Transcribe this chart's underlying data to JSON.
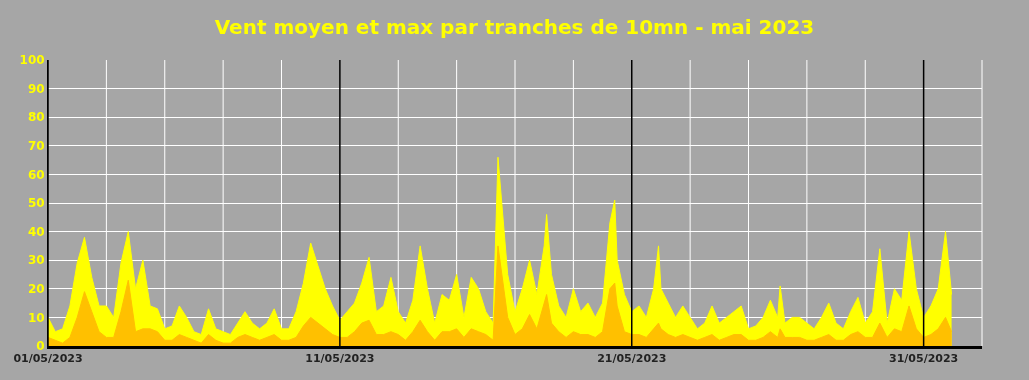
{
  "chart_data": {
    "type": "area",
    "title": "Vent moyen et max par tranches de 10mn - mai 2023",
    "x": [
      "2023-05-01T00:00",
      "2023-05-01T06:00",
      "2023-05-01T12:00",
      "2023-05-01T18:00",
      "2023-05-02T00:00",
      "2023-05-02T06:00",
      "2023-05-02T12:00",
      "2023-05-02T18:00",
      "2023-05-03T00:00",
      "2023-05-03T06:00",
      "2023-05-03T12:00",
      "2023-05-03T18:00",
      "2023-05-04T00:00",
      "2023-05-04T06:00",
      "2023-05-04T12:00",
      "2023-05-04T18:00",
      "2023-05-05T00:00",
      "2023-05-05T06:00",
      "2023-05-05T12:00",
      "2023-05-05T18:00",
      "2023-05-06T00:00",
      "2023-05-06T06:00",
      "2023-05-06T12:00",
      "2023-05-06T18:00",
      "2023-05-07T00:00",
      "2023-05-07T06:00",
      "2023-05-07T12:00",
      "2023-05-07T18:00",
      "2023-05-08T00:00",
      "2023-05-08T06:00",
      "2023-05-08T12:00",
      "2023-05-08T18:00",
      "2023-05-09T00:00",
      "2023-05-09T06:00",
      "2023-05-09T12:00",
      "2023-05-09T18:00",
      "2023-05-10T00:00",
      "2023-05-10T06:00",
      "2023-05-10T12:00",
      "2023-05-10T18:00",
      "2023-05-11T00:00",
      "2023-05-11T06:00",
      "2023-05-11T12:00",
      "2023-05-11T18:00",
      "2023-05-12T00:00",
      "2023-05-12T06:00",
      "2023-05-12T12:00",
      "2023-05-12T18:00",
      "2023-05-13T00:00",
      "2023-05-13T06:00",
      "2023-05-13T12:00",
      "2023-05-13T18:00",
      "2023-05-14T00:00",
      "2023-05-14T06:00",
      "2023-05-14T12:00",
      "2023-05-14T18:00",
      "2023-05-15T00:00",
      "2023-05-15T06:00",
      "2023-05-15T12:00",
      "2023-05-15T18:00",
      "2023-05-16T00:00",
      "2023-05-16T06:00",
      "2023-05-16T10:00",
      "2023-05-16T18:00",
      "2023-05-17T00:00",
      "2023-05-17T06:00",
      "2023-05-17T12:00",
      "2023-05-17T18:00",
      "2023-05-18T00:00",
      "2023-05-18T02:00",
      "2023-05-18T06:00",
      "2023-05-18T12:00",
      "2023-05-18T18:00",
      "2023-05-19T00:00",
      "2023-05-19T06:00",
      "2023-05-19T12:00",
      "2023-05-19T18:00",
      "2023-05-20T00:00",
      "2023-05-20T06:00",
      "2023-05-20T10:00",
      "2023-05-20T12:00",
      "2023-05-20T18:00",
      "2023-05-21T00:00",
      "2023-05-21T06:00",
      "2023-05-21T12:00",
      "2023-05-21T18:00",
      "2023-05-21T22:00",
      "2023-05-22T00:00",
      "2023-05-22T06:00",
      "2023-05-22T12:00",
      "2023-05-22T18:00",
      "2023-05-23T00:00",
      "2023-05-23T06:00",
      "2023-05-23T12:00",
      "2023-05-23T18:00",
      "2023-05-24T00:00",
      "2023-05-24T06:00",
      "2023-05-24T12:00",
      "2023-05-24T18:00",
      "2023-05-25T00:00",
      "2023-05-25T06:00",
      "2023-05-25T12:00",
      "2023-05-25T18:00",
      "2023-05-26T00:00",
      "2023-05-26T02:00",
      "2023-05-26T06:00",
      "2023-05-26T12:00",
      "2023-05-26T18:00",
      "2023-05-27T00:00",
      "2023-05-27T06:00",
      "2023-05-27T12:00",
      "2023-05-27T18:00",
      "2023-05-28T00:00",
      "2023-05-28T06:00",
      "2023-05-28T12:00",
      "2023-05-28T18:00",
      "2023-05-29T00:00",
      "2023-05-29T06:00",
      "2023-05-29T12:00",
      "2023-05-29T18:00",
      "2023-05-30T00:00",
      "2023-05-30T06:00",
      "2023-05-30T12:00",
      "2023-05-30T18:00",
      "2023-05-31T00:00",
      "2023-05-31T06:00",
      "2023-05-31T12:00",
      "2023-05-31T18:00",
      "2023-05-31T23:00"
    ],
    "series": [
      {
        "color": "#ffff00",
        "values": [
          10,
          5,
          6,
          14,
          29,
          38,
          24,
          14,
          14,
          10,
          29,
          40,
          20,
          30,
          14,
          13,
          6,
          7,
          14,
          10,
          5,
          4,
          13,
          6,
          5,
          4,
          8,
          12,
          8,
          6,
          8,
          13,
          6,
          6,
          12,
          22,
          36,
          28,
          20,
          14,
          9,
          12,
          15,
          22,
          31,
          12,
          14,
          24,
          12,
          8,
          16,
          35,
          20,
          8,
          18,
          16,
          25,
          10,
          24,
          20,
          12,
          8,
          66,
          25,
          12,
          20,
          30,
          18,
          35,
          46,
          25,
          14,
          10,
          20,
          12,
          15,
          10,
          15,
          43,
          51,
          30,
          18,
          12,
          14,
          10,
          20,
          35,
          20,
          15,
          10,
          14,
          10,
          6,
          8,
          14,
          8,
          10,
          12,
          14,
          6,
          7,
          10,
          16,
          10,
          21,
          8,
          10,
          10,
          8,
          6,
          10,
          15,
          8,
          6,
          12,
          17,
          8,
          12,
          34,
          8,
          20,
          16,
          40,
          20,
          10,
          14,
          20,
          40,
          18
        ]
      },
      {
        "color": "#ffc000",
        "values": [
          3,
          2,
          1,
          3,
          10,
          19,
          12,
          5,
          3,
          3,
          12,
          23,
          5,
          6,
          6,
          5,
          2,
          2,
          4,
          3,
          2,
          1,
          4,
          2,
          1,
          1,
          3,
          4,
          3,
          2,
          3,
          4,
          2,
          2,
          3,
          7,
          10,
          8,
          6,
          4,
          3,
          3,
          5,
          8,
          9,
          4,
          4,
          5,
          4,
          2,
          5,
          9,
          5,
          2,
          5,
          5,
          6,
          3,
          6,
          5,
          4,
          2,
          35,
          10,
          4,
          6,
          11,
          6,
          15,
          18,
          8,
          5,
          3,
          5,
          4,
          4,
          3,
          5,
          20,
          22,
          14,
          5,
          4,
          4,
          3,
          6,
          8,
          6,
          4,
          3,
          4,
          3,
          2,
          3,
          4,
          2,
          3,
          4,
          4,
          2,
          2,
          3,
          5,
          3,
          6,
          3,
          3,
          3,
          2,
          2,
          3,
          4,
          2,
          2,
          4,
          5,
          3,
          3,
          8,
          3,
          6,
          5,
          14,
          6,
          3,
          4,
          6,
          10,
          5
        ]
      }
    ],
    "xlim": [
      "2023-05-01",
      "2023-06-02"
    ],
    "xticks": [
      {
        "value": "2023-05-01",
        "label": "01/05/2023"
      },
      {
        "value": "2023-05-03",
        "label": null
      },
      {
        "value": "2023-05-05",
        "label": null
      },
      {
        "value": "2023-05-07",
        "label": null
      },
      {
        "value": "2023-05-09",
        "label": null
      },
      {
        "value": "2023-05-11",
        "label": "11/05/2023"
      },
      {
        "value": "2023-05-13",
        "label": null
      },
      {
        "value": "2023-05-15",
        "label": null
      },
      {
        "value": "2023-05-17",
        "label": null
      },
      {
        "value": "2023-05-19",
        "label": null
      },
      {
        "value": "2023-05-21",
        "label": "21/05/2023"
      },
      {
        "value": "2023-05-23",
        "label": null
      },
      {
        "value": "2023-05-25",
        "label": null
      },
      {
        "value": "2023-05-27",
        "label": null
      },
      {
        "value": "2023-05-29",
        "label": null
      },
      {
        "value": "2023-05-31",
        "label": "31/05/2023"
      }
    ],
    "ylim": [
      0,
      100
    ],
    "yticks": [
      0,
      10,
      20,
      30,
      40,
      50,
      60,
      70,
      80,
      90,
      100
    ],
    "grid": true
  }
}
